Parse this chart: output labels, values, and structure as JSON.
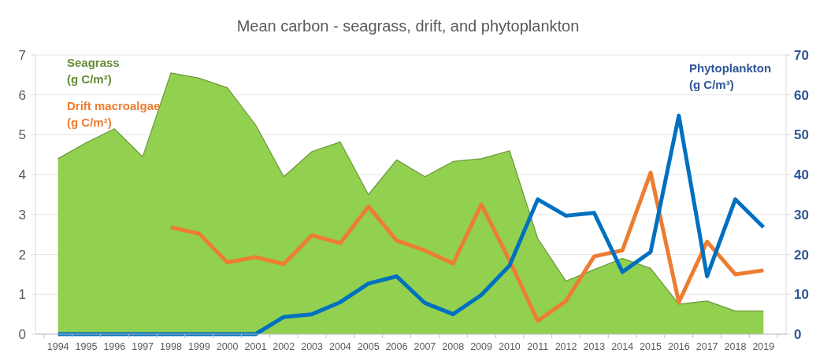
{
  "chart_data": {
    "type": "line",
    "title": "Mean carbon - seagrass, drift, and phytoplankton",
    "categories": [
      "1994",
      "1995",
      "1996",
      "1997",
      "1998",
      "1999",
      "2000",
      "2001",
      "2002",
      "2003",
      "2004",
      "2005",
      "2006",
      "2007",
      "2008",
      "2009",
      "2010",
      "2011",
      "2012",
      "2013",
      "2014",
      "2015",
      "2016",
      "2017",
      "2018",
      "2019"
    ],
    "series": [
      {
        "name": "Seagrass (g C/m²)",
        "type": "area",
        "color": "#92d050",
        "values": [
          4.4,
          4.8,
          5.15,
          4.45,
          6.55,
          6.42,
          6.18,
          5.25,
          3.95,
          4.58,
          4.82,
          3.5,
          4.37,
          3.95,
          4.33,
          4.4,
          4.6,
          2.4,
          1.33,
          1.62,
          1.9,
          1.65,
          0.75,
          0.83,
          0.58,
          0.58
        ]
      },
      {
        "name": "Drift macroalgae (g C/m²)",
        "color": "#ed7d31",
        "values": [
          null,
          null,
          null,
          null,
          2.68,
          2.52,
          1.8,
          1.93,
          1.76,
          2.48,
          2.28,
          3.2,
          2.35,
          2.1,
          1.77,
          3.25,
          1.85,
          0.33,
          0.83,
          1.95,
          2.1,
          4.05,
          0.8,
          2.32,
          1.5,
          1.6
        ]
      },
      {
        "name": "Phytoplankton (g C/m³)",
        "axis": "y2",
        "color": "#0070c0",
        "values": [
          0,
          0,
          0,
          0,
          0,
          0,
          0,
          0,
          4.3,
          5,
          8,
          12.7,
          14.5,
          7.8,
          5,
          9.8,
          17.2,
          33.8,
          29.7,
          30.4,
          15.6,
          20.6,
          54.8,
          14.5,
          33.8,
          26.8
        ]
      }
    ],
    "ylim": [
      0,
      7
    ],
    "yticks": [
      0,
      1,
      2,
      3,
      4,
      5,
      6,
      7
    ],
    "y2lim": [
      0,
      70
    ],
    "y2ticks": [
      0,
      10,
      20,
      30,
      40,
      50,
      60,
      70
    ],
    "grid": "y",
    "marker": "none",
    "line_style": "solid"
  }
}
